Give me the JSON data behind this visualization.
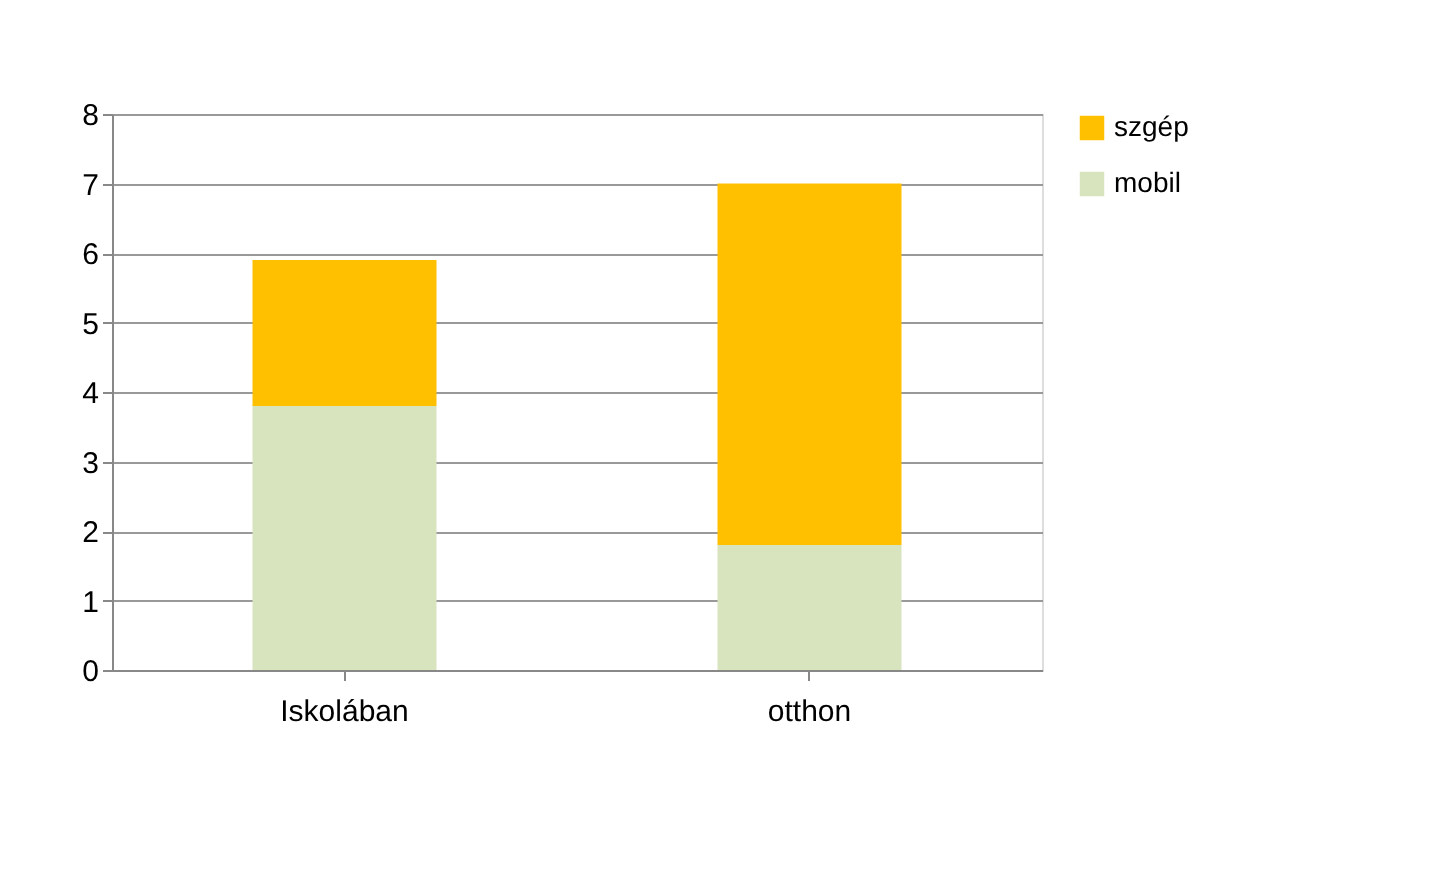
{
  "chart_data": {
    "type": "bar",
    "stacked": true,
    "categories": [
      "Iskolában",
      "otthon"
    ],
    "series": [
      {
        "name": "mobil",
        "color": "#d7e4bd",
        "values": [
          3.8,
          1.8
        ]
      },
      {
        "name": "szgép",
        "color": "#ffc000",
        "values": [
          2.1,
          5.2
        ]
      }
    ],
    "ylim": [
      0,
      8
    ],
    "yticks": [
      0,
      1,
      2,
      3,
      4,
      5,
      6,
      7,
      8
    ],
    "grid": "y",
    "legend": "right"
  }
}
